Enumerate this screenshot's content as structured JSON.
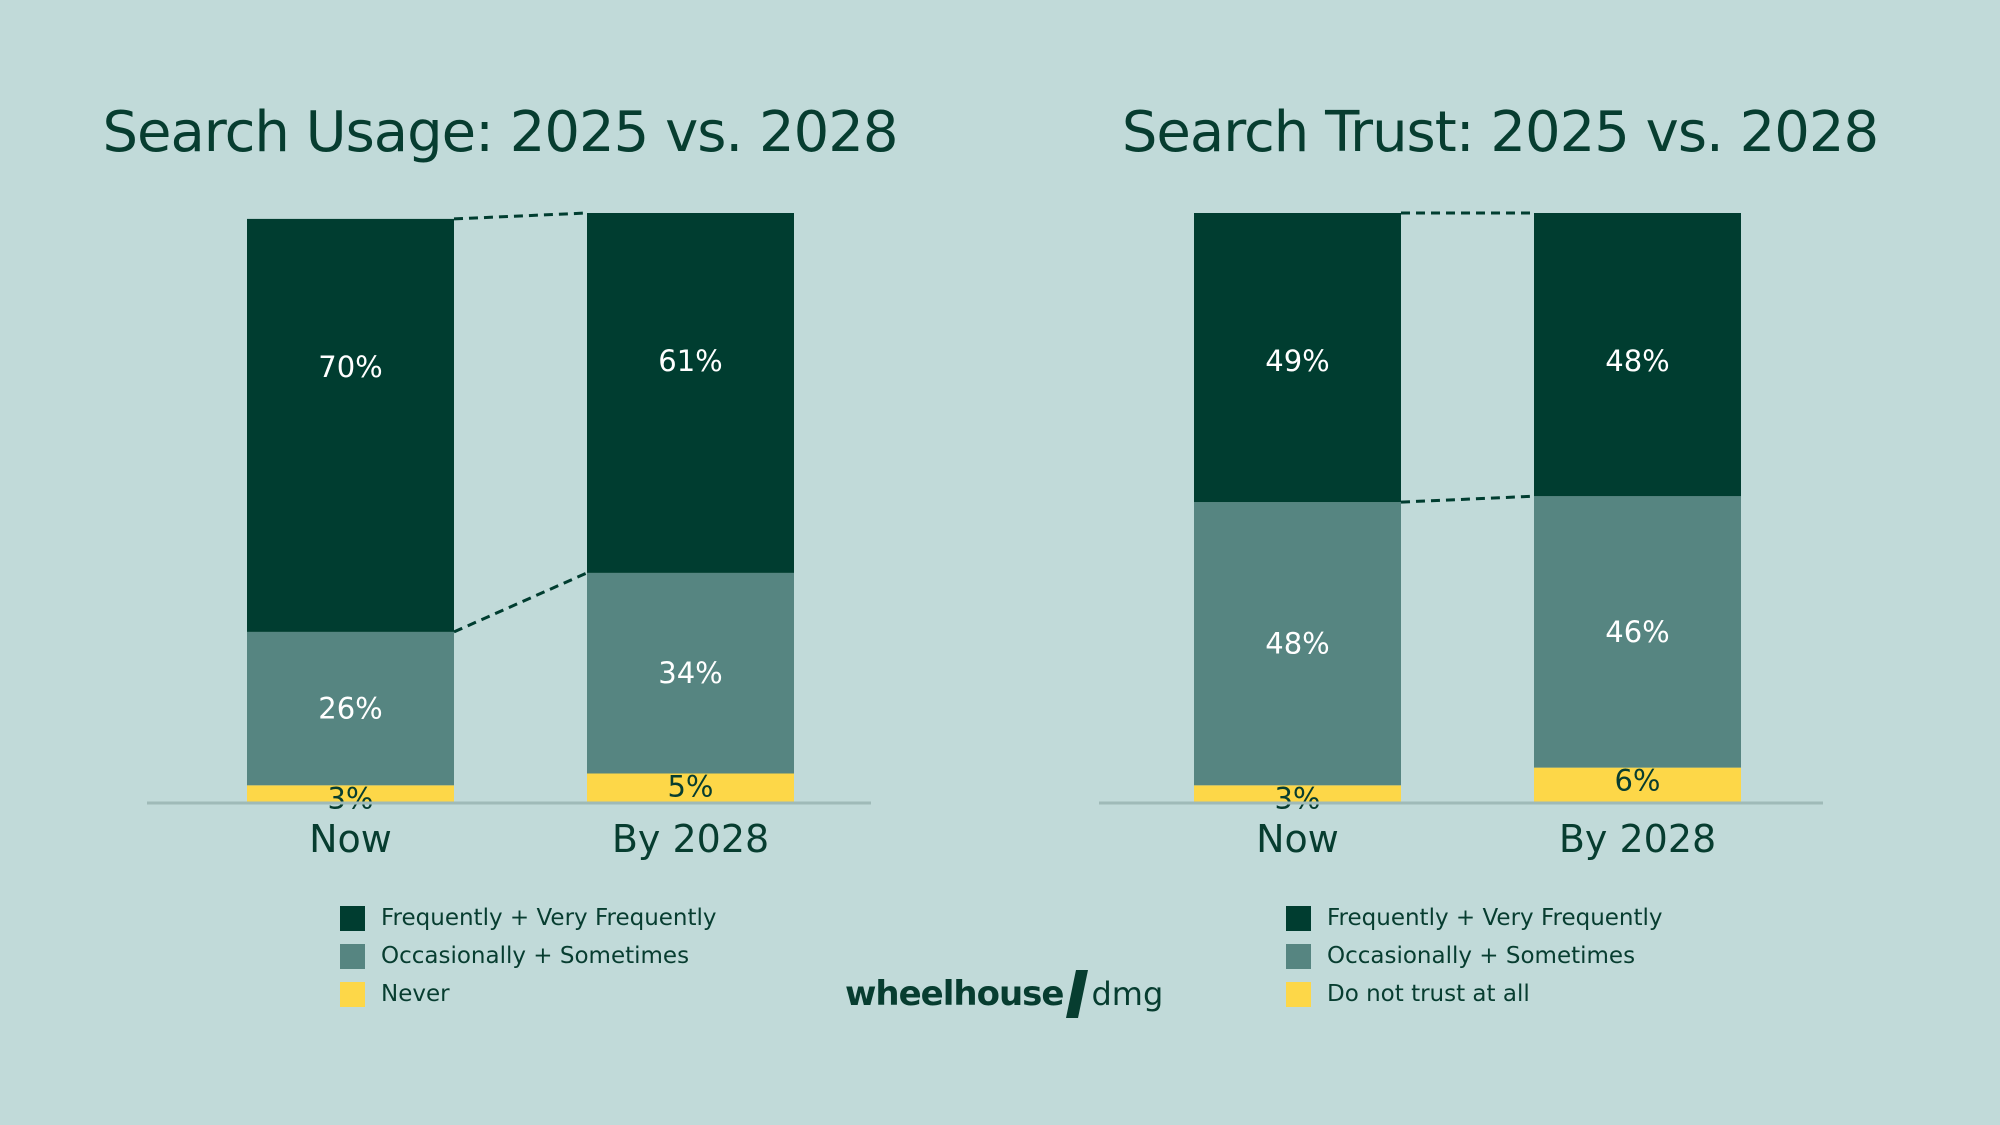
{
  "colors": {
    "background": "#c1dad9",
    "text": "#073d30",
    "frequent": "#003d30",
    "occasional": "#568581",
    "never": "#fdd748",
    "axis": "#9fbab8"
  },
  "logo": {
    "brand": "wheelhouse",
    "icon": "slash-icon",
    "sub": "dmg"
  },
  "chart_data": [
    {
      "type": "bar",
      "stacked": true,
      "title": "Search Usage: 2025 vs. 2028",
      "categories": [
        "Now",
        "By 2028"
      ],
      "ylim": [
        0,
        100
      ],
      "grid": false,
      "legend_position": "bottom",
      "series": [
        {
          "name": "Never",
          "values": [
            3,
            5
          ],
          "labels": [
            "3%",
            "5%"
          ]
        },
        {
          "name": "Occasionally + Sometimes",
          "values": [
            26,
            34
          ],
          "labels": [
            "26%",
            "34%"
          ]
        },
        {
          "name": "Frequently + Very Frequently",
          "values": [
            70,
            61
          ],
          "labels": [
            "70%",
            "61%"
          ]
        }
      ]
    },
    {
      "type": "bar",
      "stacked": true,
      "title": "Search Trust: 2025 vs. 2028",
      "categories": [
        "Now",
        "By 2028"
      ],
      "ylim": [
        0,
        100
      ],
      "grid": false,
      "legend_position": "bottom",
      "series": [
        {
          "name": "Do not trust at all",
          "values": [
            3,
            6
          ],
          "labels": [
            "3%",
            "6%"
          ]
        },
        {
          "name": "Occasionally + Sometimes",
          "values": [
            48,
            46
          ],
          "labels": [
            "48%",
            "46%"
          ]
        },
        {
          "name": "Frequently + Very Frequently",
          "values": [
            49,
            48
          ],
          "labels": [
            "49%",
            "48%"
          ]
        }
      ]
    }
  ]
}
